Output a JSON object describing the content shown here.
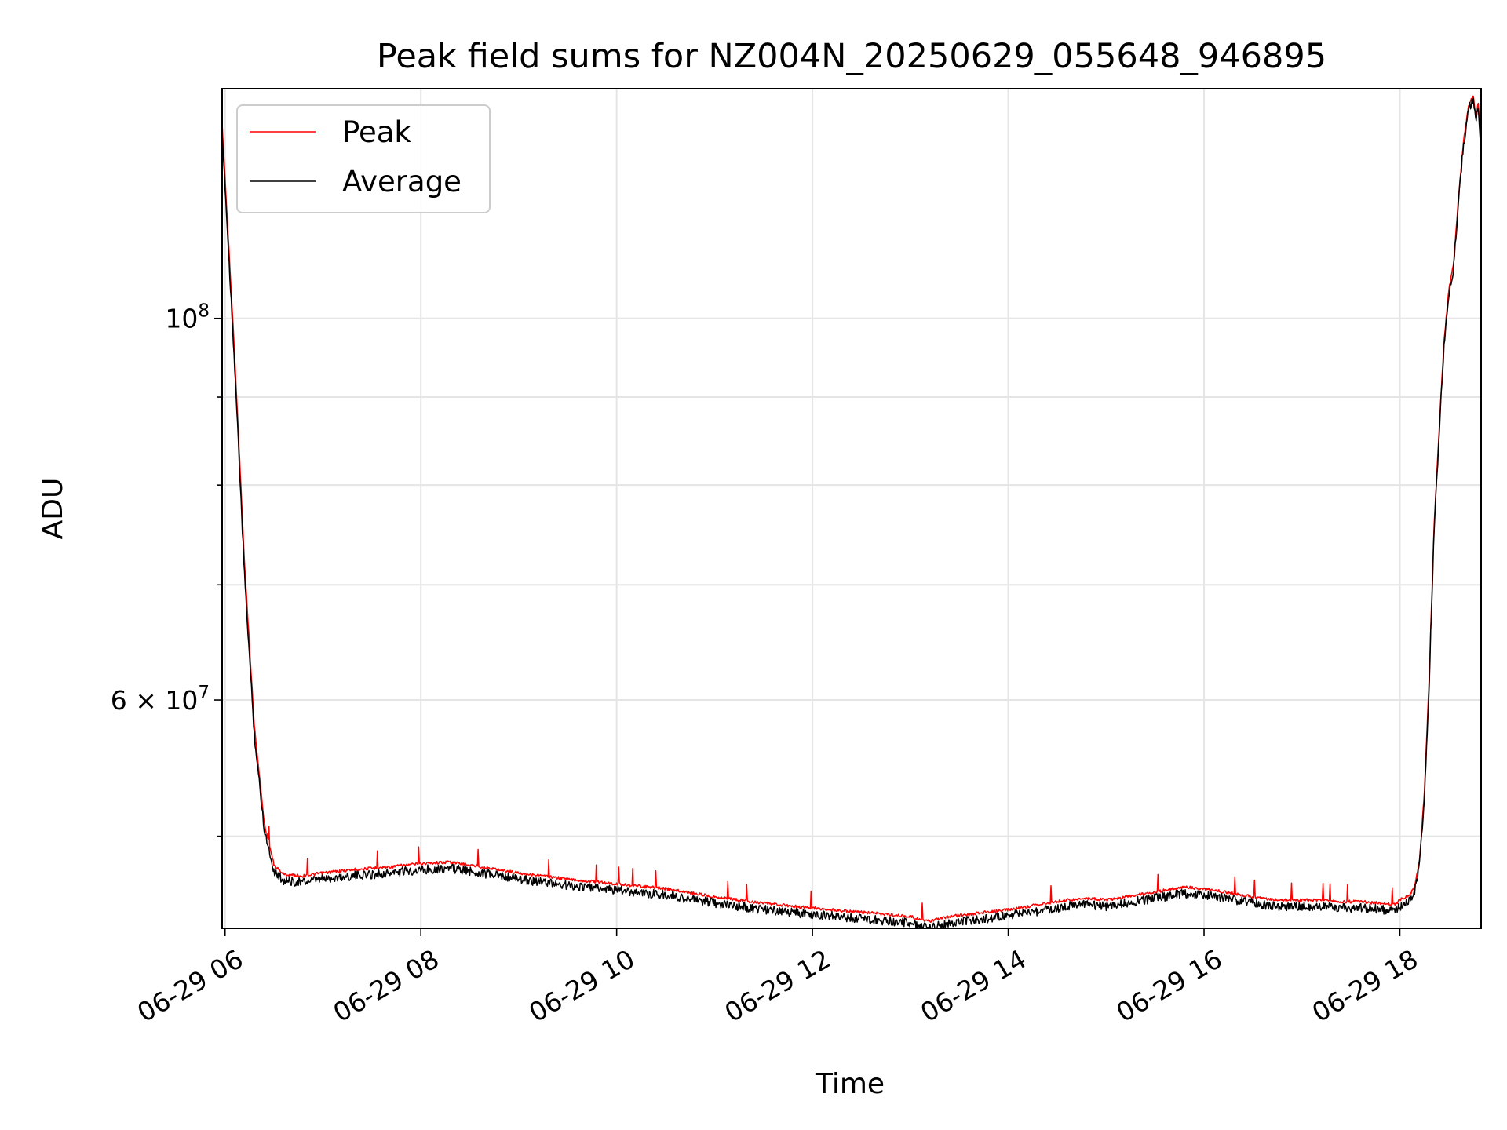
{
  "chart_data": {
    "type": "line",
    "title": "Peak field sums for NZ004N_20250629_055648_946895",
    "xlabel": "Time",
    "ylabel": "ADU",
    "x_ticks": [
      "06-29 06",
      "06-29 08",
      "06-29 10",
      "06-29 12",
      "06-29 14",
      "06-29 16",
      "06-29 18"
    ],
    "x_tick_hours": [
      6,
      8,
      10,
      12,
      14,
      16,
      18
    ],
    "xlim_hours": [
      5.97,
      18.83
    ],
    "y_scale": "log",
    "ylim": [
      44200000,
      136000000
    ],
    "y_major_ticks": [
      {
        "value": 100000000,
        "base": "10",
        "exp": "8"
      },
      {
        "value": 60000000,
        "base": "6 × 10",
        "exp": "7"
      }
    ],
    "y_minor_ticks": [
      50000000,
      70000000,
      80000000,
      90000000
    ],
    "grid": true,
    "legend": {
      "position": "upper-left",
      "entries": [
        "Peak",
        "Average"
      ]
    },
    "colors": {
      "Peak": "#ff0000",
      "Average": "#000000"
    },
    "series": [
      {
        "name": "Peak",
        "x_hours": [
          5.97,
          6.0,
          6.1,
          6.2,
          6.3,
          6.4,
          6.5,
          6.6,
          6.8,
          7.0,
          7.3,
          7.7,
          8.0,
          8.3,
          8.6,
          9.0,
          9.5,
          10.0,
          10.5,
          11.0,
          11.5,
          12.0,
          12.4,
          12.8,
          13.0,
          13.1,
          13.2,
          13.4,
          13.7,
          14.0,
          14.3,
          14.6,
          14.8,
          15.0,
          15.3,
          15.6,
          15.8,
          16.0,
          16.2,
          16.4,
          16.6,
          16.8,
          17.0,
          17.2,
          17.4,
          17.6,
          17.8,
          17.95,
          18.0,
          18.1,
          18.15,
          18.2,
          18.25,
          18.3,
          18.35,
          18.4,
          18.45,
          18.5,
          18.55,
          18.6,
          18.65,
          18.7,
          18.72,
          18.75,
          18.78,
          18.8,
          18.82,
          18.83
        ],
        "values": [
          130000000,
          121000000,
          95000000,
          72000000,
          58000000,
          51000000,
          48200000,
          47600000,
          47500000,
          47700000,
          47900000,
          48100000,
          48300000,
          48400000,
          48100000,
          47700000,
          47300000,
          47000000,
          46700000,
          46200000,
          45800000,
          45500000,
          45300000,
          45100000,
          45000000,
          44800000,
          44700000,
          45000000,
          45200000,
          45400000,
          45700000,
          46000000,
          46100000,
          46000000,
          46300000,
          46600000,
          46800000,
          46700000,
          46500000,
          46300000,
          46100000,
          46000000,
          46000000,
          46000000,
          45900000,
          45900000,
          45800000,
          45700000,
          46000000,
          46300000,
          46800000,
          48500000,
          53000000,
          62000000,
          76000000,
          86000000,
          97000000,
          104000000,
          108000000,
          118000000,
          127000000,
          133000000,
          134000000,
          135000000,
          131000000,
          134000000,
          128000000,
          126000000
        ]
      },
      {
        "name": "Average",
        "x_hours": [
          5.97,
          6.0,
          6.1,
          6.2,
          6.3,
          6.4,
          6.5,
          6.6,
          6.8,
          7.0,
          7.3,
          7.7,
          8.0,
          8.3,
          8.6,
          9.0,
          9.5,
          10.0,
          10.5,
          11.0,
          11.5,
          12.0,
          12.4,
          12.8,
          13.0,
          13.1,
          13.2,
          13.4,
          13.7,
          14.0,
          14.3,
          14.6,
          14.8,
          15.0,
          15.3,
          15.6,
          15.8,
          16.0,
          16.2,
          16.4,
          16.6,
          16.8,
          17.0,
          17.2,
          17.4,
          17.6,
          17.8,
          17.95,
          18.0,
          18.1,
          18.15,
          18.2,
          18.25,
          18.3,
          18.35,
          18.4,
          18.45,
          18.5,
          18.55,
          18.6,
          18.65,
          18.7,
          18.72,
          18.75,
          18.78,
          18.8,
          18.82,
          18.83
        ],
        "values": [
          128000000,
          120000000,
          94000000,
          71000000,
          57500000,
          50800000,
          48000000,
          47400000,
          47300000,
          47500000,
          47700000,
          47900000,
          48100000,
          48200000,
          47900000,
          47500000,
          47100000,
          46800000,
          46500000,
          46000000,
          45600000,
          45300000,
          45100000,
          44900000,
          44800000,
          44600000,
          44500000,
          44800000,
          45000000,
          45200000,
          45500000,
          45800000,
          45900000,
          45800000,
          46100000,
          46400000,
          46600000,
          46500000,
          46300000,
          46100000,
          45900000,
          45800000,
          45800000,
          45800000,
          45700000,
          45700000,
          45600000,
          45500000,
          45800000,
          46100000,
          46600000,
          48300000,
          52800000,
          61800000,
          75800000,
          85800000,
          96800000,
          103800000,
          107800000,
          117800000,
          126800000,
          132800000,
          133800000,
          134800000,
          130800000,
          133800000,
          127800000,
          125800000
        ]
      }
    ]
  }
}
